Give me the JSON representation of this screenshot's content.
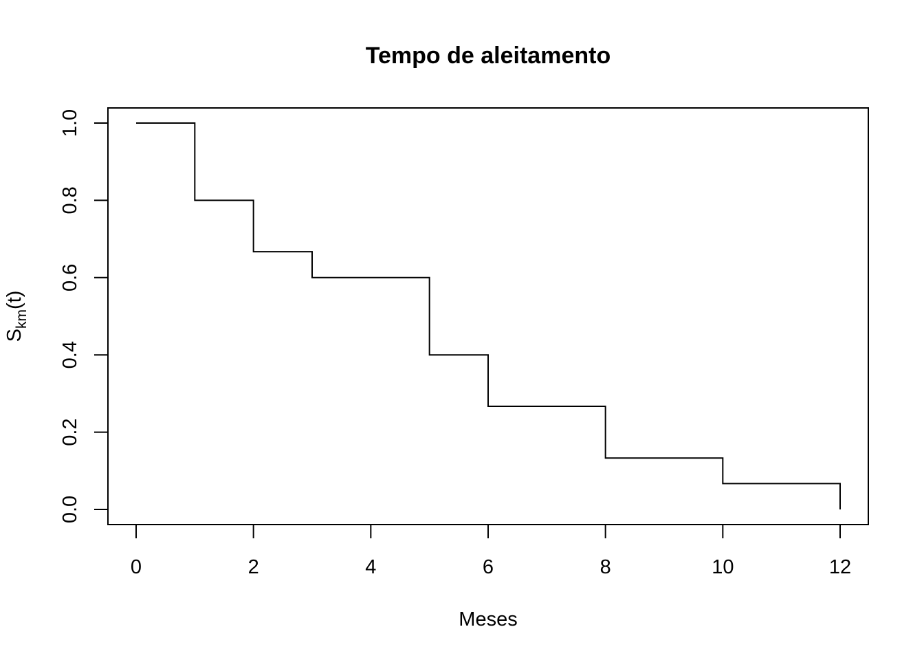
{
  "chart_data": {
    "type": "line",
    "step": true,
    "title": "Tempo de aleitamento",
    "xlabel": "Meses",
    "ylabel": {
      "symbol": "S",
      "subscript": "km",
      "suffix": "(t)"
    },
    "xlim": [
      0,
      12
    ],
    "ylim": [
      0,
      1
    ],
    "x_ticks": [
      "0",
      "2",
      "4",
      "6",
      "8",
      "10",
      "12"
    ],
    "y_ticks": [
      "0.0",
      "0.2",
      "0.4",
      "0.6",
      "0.8",
      "1.0"
    ],
    "grid": false,
    "legend": "none",
    "line_color": "#000000",
    "series": [
      {
        "x": [
          0,
          1,
          2,
          3,
          5,
          6,
          8,
          10,
          12
        ],
        "y": [
          1.0,
          0.8,
          0.667,
          0.6,
          0.4,
          0.267,
          0.133,
          0.067,
          0.0
        ]
      }
    ]
  }
}
